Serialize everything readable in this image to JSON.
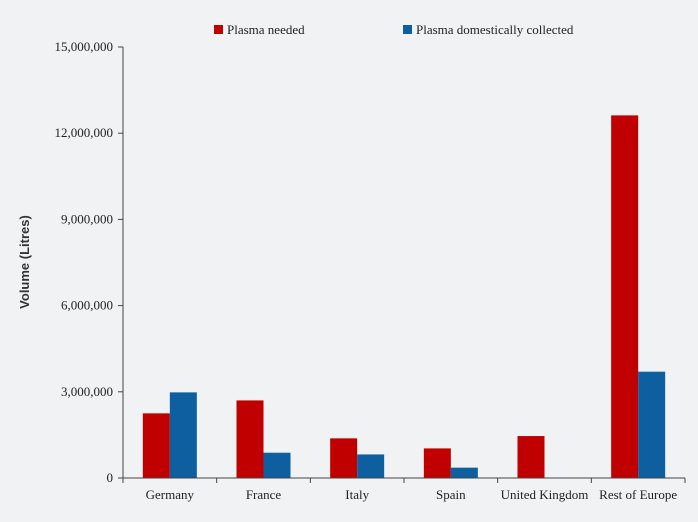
{
  "chart_data": {
    "type": "bar",
    "title": "",
    "xlabel": "",
    "ylabel": "Volume (Litres)",
    "ylim": [
      0,
      15000000
    ],
    "yticks": [
      0,
      3000000,
      6000000,
      9000000,
      12000000,
      15000000
    ],
    "ytick_labels": [
      "0",
      "3,000,000",
      "6,000,000",
      "9,000,000",
      "12,000,000",
      "15,000,000"
    ],
    "grid": false,
    "legend_position": "top",
    "categories": [
      "Germany",
      "France",
      "Italy",
      "Spain",
      "United Kingdom",
      "Rest of Europe"
    ],
    "series": [
      {
        "name": "Plasma needed",
        "color": "#c00000",
        "values": [
          2250000,
          2700000,
          1380000,
          1030000,
          1460000,
          12620000
        ]
      },
      {
        "name": "Plasma domestically collected",
        "color": "#0e5fa0",
        "values": [
          2980000,
          880000,
          820000,
          360000,
          0,
          3700000
        ]
      }
    ]
  }
}
